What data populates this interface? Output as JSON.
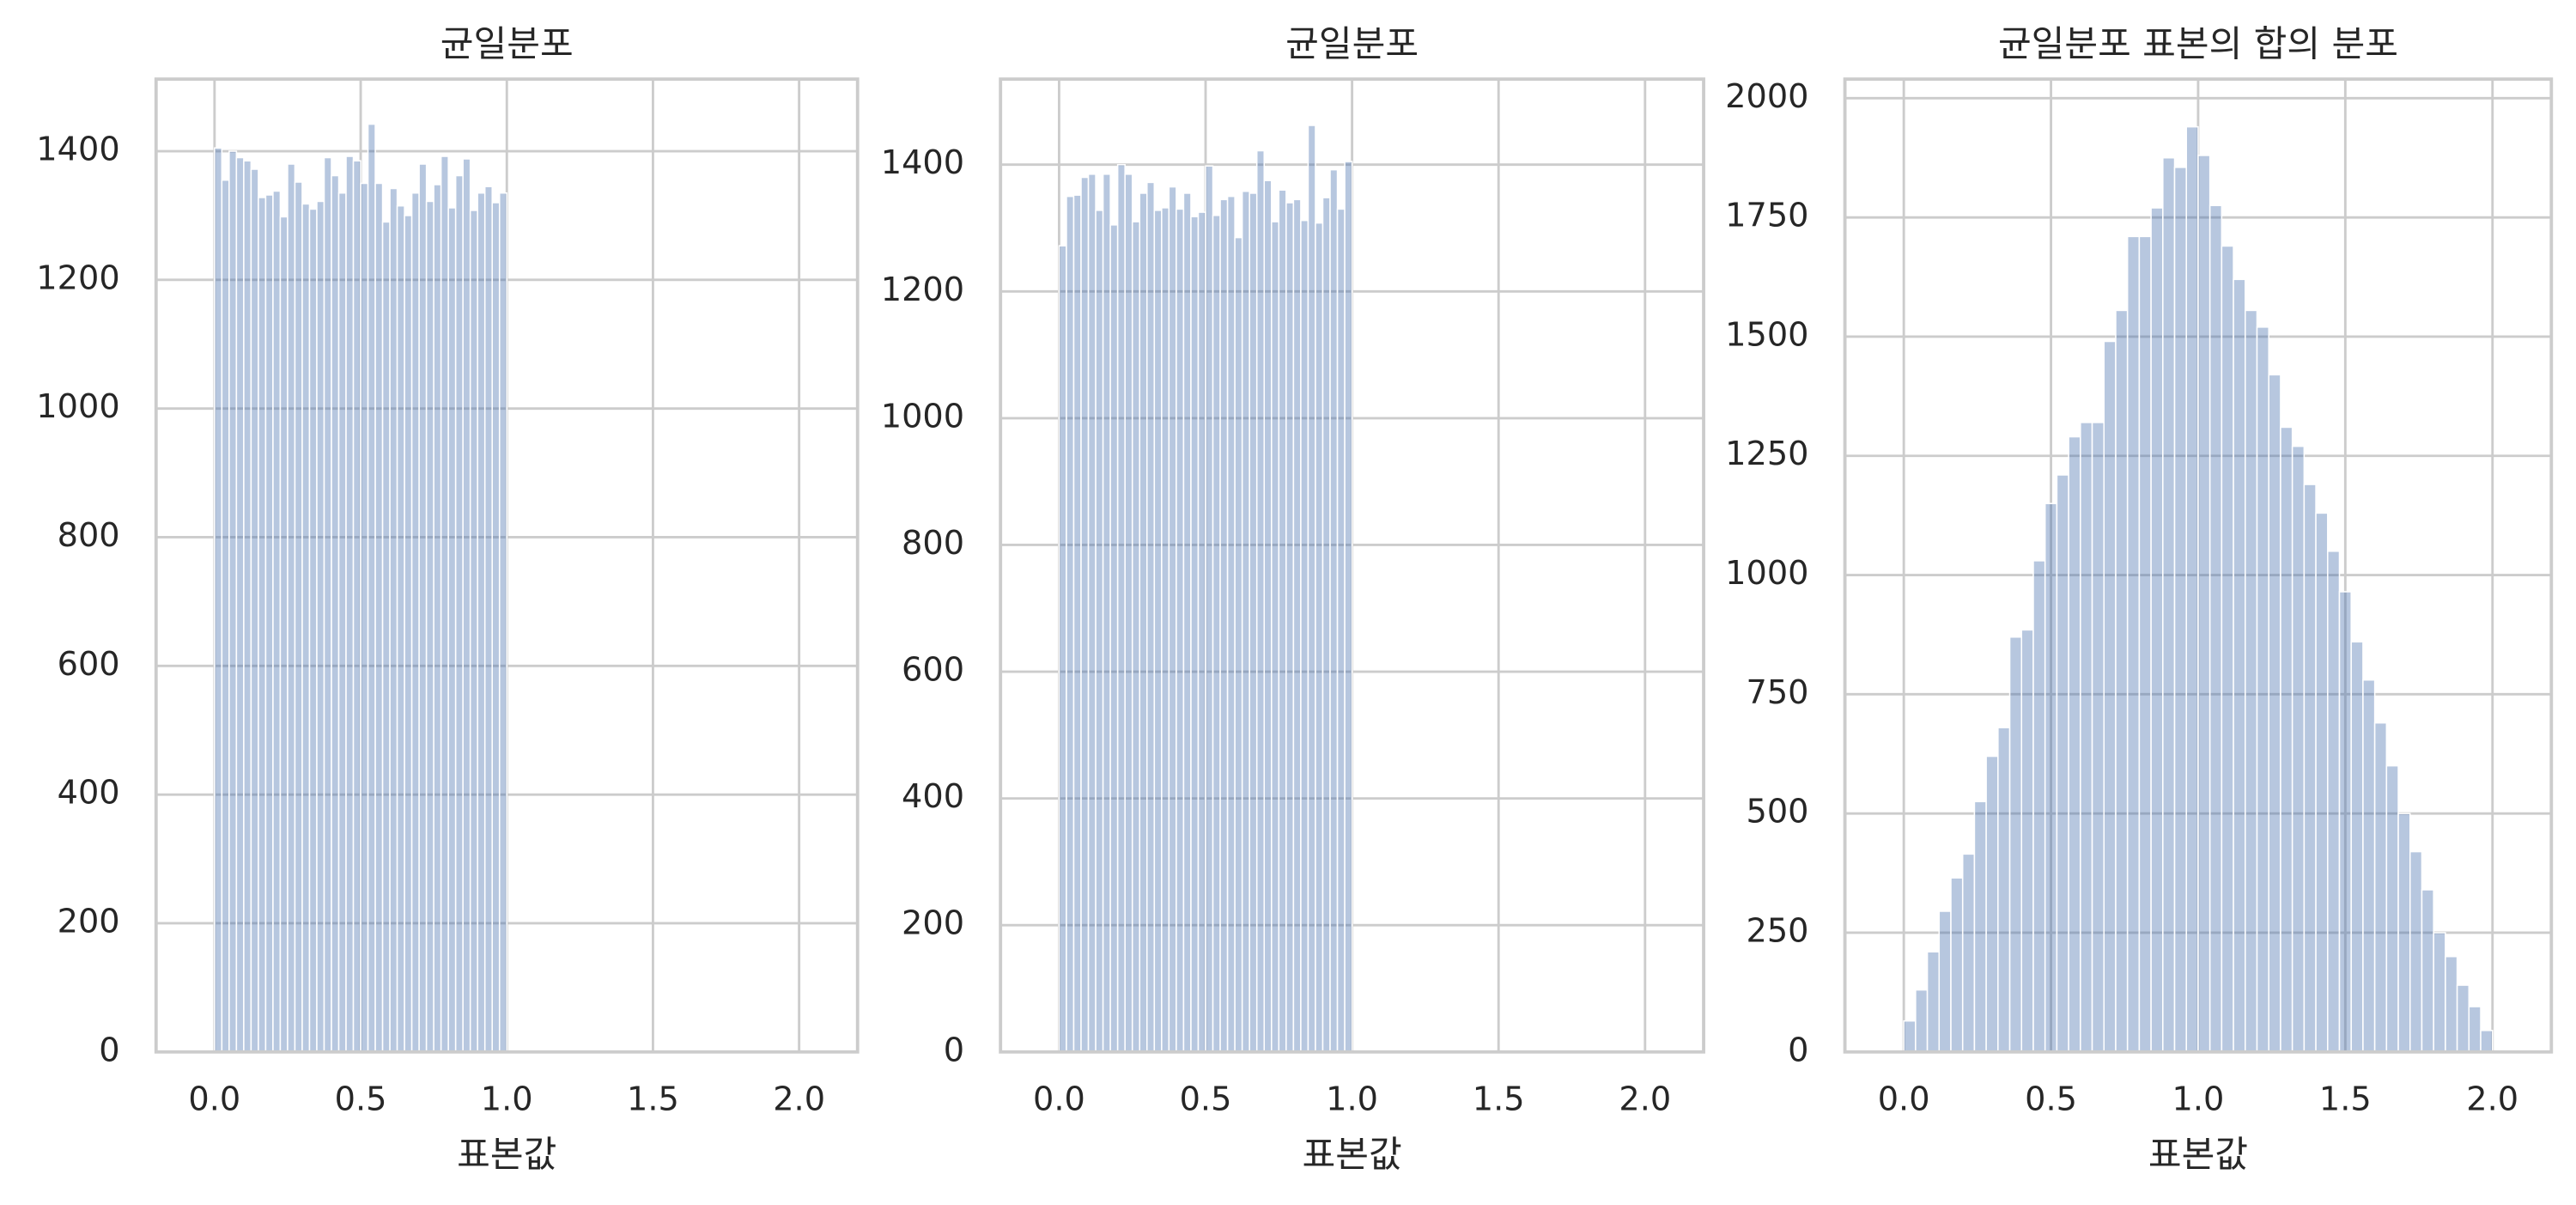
{
  "chart_data": [
    {
      "type": "histogram",
      "title": "균일분포",
      "xlabel": "표본값",
      "color": "#4c72b0",
      "grid": true,
      "bins": [
        0,
        0.025,
        0.05,
        0.075,
        0.1,
        0.125,
        0.15,
        0.175,
        0.2,
        0.225,
        0.25,
        0.275,
        0.3,
        0.325,
        0.35,
        0.375,
        0.4,
        0.425,
        0.45,
        0.475,
        0.5,
        0.525,
        0.55,
        0.575,
        0.6,
        0.625,
        0.65,
        0.675,
        0.7,
        0.725,
        0.75,
        0.775,
        0.8,
        0.825,
        0.85,
        0.875,
        0.9,
        0.925,
        0.95,
        0.975,
        1
      ],
      "values": [
        1405,
        1355,
        1400,
        1390,
        1385,
        1372,
        1328,
        1332,
        1338,
        1298,
        1380,
        1352,
        1318,
        1310,
        1322,
        1390,
        1362,
        1335,
        1392,
        1385,
        1350,
        1442,
        1350,
        1290,
        1342,
        1315,
        1300,
        1335,
        1380,
        1322,
        1348,
        1392,
        1312,
        1362,
        1388,
        1308,
        1335,
        1345,
        1320,
        1335
      ],
      "xlim": [
        -0.2,
        2.2
      ],
      "xticks": [
        {
          "value": 0,
          "label": "0.0"
        },
        {
          "value": 0.5,
          "label": "0.5"
        },
        {
          "value": 1,
          "label": "1.0"
        },
        {
          "value": 1.5,
          "label": "1.5"
        },
        {
          "value": 2,
          "label": "2.0"
        }
      ],
      "ylim": [
        0,
        1512
      ],
      "yticks": [
        0,
        200,
        400,
        600,
        800,
        1000,
        1200,
        1400
      ]
    },
    {
      "type": "histogram",
      "title": "균일분포",
      "xlabel": "표본값",
      "color": "#4c72b0",
      "grid": true,
      "bins": [
        0,
        0.025,
        0.05,
        0.075,
        0.1,
        0.125,
        0.15,
        0.175,
        0.2,
        0.225,
        0.25,
        0.275,
        0.3,
        0.325,
        0.35,
        0.375,
        0.4,
        0.425,
        0.45,
        0.475,
        0.5,
        0.525,
        0.55,
        0.575,
        0.6,
        0.625,
        0.65,
        0.675,
        0.7,
        0.725,
        0.75,
        0.775,
        0.8,
        0.825,
        0.85,
        0.875,
        0.9,
        0.925,
        0.95,
        0.975,
        1
      ],
      "values": [
        1272,
        1350,
        1352,
        1380,
        1385,
        1328,
        1385,
        1305,
        1400,
        1385,
        1310,
        1355,
        1372,
        1328,
        1332,
        1365,
        1330,
        1355,
        1318,
        1325,
        1398,
        1320,
        1345,
        1350,
        1285,
        1358,
        1355,
        1422,
        1375,
        1310,
        1360,
        1340,
        1345,
        1312,
        1462,
        1308,
        1348,
        1392,
        1330,
        1405
      ],
      "xlim": [
        -0.2,
        2.2
      ],
      "xticks": [
        {
          "value": 0,
          "label": "0.0"
        },
        {
          "value": 0.5,
          "label": "0.5"
        },
        {
          "value": 1,
          "label": "1.0"
        },
        {
          "value": 1.5,
          "label": "1.5"
        },
        {
          "value": 2,
          "label": "2.0"
        }
      ],
      "ylim": [
        0,
        1535
      ],
      "yticks": [
        0,
        200,
        400,
        600,
        800,
        1000,
        1200,
        1400
      ]
    },
    {
      "type": "histogram",
      "title": "균일분포 표본의 합의 분포",
      "xlabel": "표본값",
      "color": "#4c72b0",
      "grid": true,
      "bins": [
        0,
        0.04,
        0.08,
        0.12,
        0.16,
        0.2,
        0.24,
        0.28,
        0.32,
        0.36,
        0.4,
        0.44,
        0.48,
        0.52,
        0.56,
        0.6,
        0.64,
        0.68,
        0.72,
        0.76,
        0.8,
        0.84,
        0.88,
        0.92,
        0.96,
        1,
        1.04,
        1.08,
        1.12,
        1.16,
        1.2,
        1.24,
        1.28,
        1.32,
        1.36,
        1.4,
        1.44,
        1.48,
        1.52,
        1.56,
        1.6,
        1.64,
        1.68,
        1.72,
        1.76,
        1.8,
        1.84,
        1.88,
        1.92,
        1.96,
        2
      ],
      "values": [
        65,
        130,
        210,
        295,
        365,
        415,
        525,
        620,
        680,
        870,
        885,
        1030,
        1150,
        1210,
        1290,
        1320,
        1320,
        1490,
        1555,
        1710,
        1710,
        1770,
        1875,
        1855,
        1940,
        1880,
        1775,
        1690,
        1620,
        1555,
        1520,
        1420,
        1310,
        1270,
        1190,
        1130,
        1050,
        965,
        860,
        780,
        690,
        600,
        500,
        420,
        340,
        250,
        200,
        140,
        95,
        45
      ],
      "xlim": [
        -0.2,
        2.2
      ],
      "xticks": [
        {
          "value": 0,
          "label": "0.0"
        },
        {
          "value": 0.5,
          "label": "0.5"
        },
        {
          "value": 1,
          "label": "1.0"
        },
        {
          "value": 1.5,
          "label": "1.5"
        },
        {
          "value": 2,
          "label": "2.0"
        }
      ],
      "ylim": [
        0,
        2040
      ],
      "yticks": [
        0,
        250,
        500,
        750,
        1000,
        1250,
        1500,
        1750,
        2000
      ]
    }
  ]
}
